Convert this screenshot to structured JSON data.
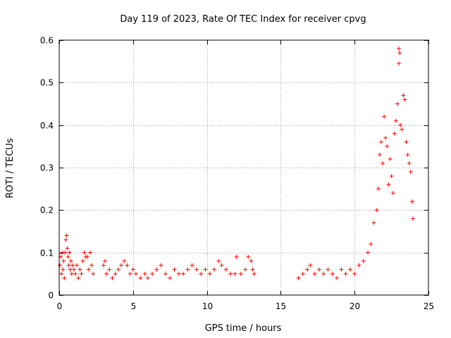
{
  "chart_data": {
    "type": "scatter",
    "title": "Day 119 of 2023, Rate Of TEC Index for receiver cpvg",
    "xlabel": "GPS time / hours",
    "ylabel": "ROTI / TECUs",
    "xlim": [
      0,
      25
    ],
    "ylim": [
      0,
      0.6
    ],
    "xticks": [
      0,
      5,
      10,
      15,
      20,
      25
    ],
    "xtick_labels": [
      "0",
      "5",
      "10",
      "15",
      "20",
      "25"
    ],
    "yticks": [
      0,
      0.1,
      0.2,
      0.3,
      0.4,
      0.5,
      0.6
    ],
    "ytick_labels": [
      "0",
      "0.1",
      "0.2",
      "0.3",
      "0.4",
      "0.5",
      "0.6"
    ],
    "grid": true,
    "marker": "+",
    "marker_color": "#ff0000",
    "series": [
      {
        "name": "ROTI",
        "points": [
          [
            0.05,
            0.07
          ],
          [
            0.1,
            0.09
          ],
          [
            0.15,
            0.05
          ],
          [
            0.2,
            0.1
          ],
          [
            0.25,
            0.06
          ],
          [
            0.3,
            0.08
          ],
          [
            0.35,
            0.04
          ],
          [
            0.4,
            0.1
          ],
          [
            0.45,
            0.13
          ],
          [
            0.5,
            0.14
          ],
          [
            0.55,
            0.11
          ],
          [
            0.6,
            0.09
          ],
          [
            0.65,
            0.07
          ],
          [
            0.7,
            0.1
          ],
          [
            0.75,
            0.06
          ],
          [
            0.8,
            0.08
          ],
          [
            0.85,
            0.05
          ],
          [
            0.9,
            0.07
          ],
          [
            1.0,
            0.06
          ],
          [
            1.1,
            0.05
          ],
          [
            1.2,
            0.07
          ],
          [
            1.3,
            0.04
          ],
          [
            1.4,
            0.06
          ],
          [
            1.5,
            0.05
          ],
          [
            1.6,
            0.08
          ],
          [
            1.7,
            0.1
          ],
          [
            1.8,
            0.09
          ],
          [
            1.9,
            0.09
          ],
          [
            2.0,
            0.06
          ],
          [
            2.1,
            0.1
          ],
          [
            2.2,
            0.07
          ],
          [
            2.3,
            0.05
          ],
          [
            3.0,
            0.07
          ],
          [
            3.1,
            0.08
          ],
          [
            3.2,
            0.05
          ],
          [
            3.4,
            0.06
          ],
          [
            3.6,
            0.04
          ],
          [
            3.8,
            0.05
          ],
          [
            4.0,
            0.06
          ],
          [
            4.2,
            0.07
          ],
          [
            4.4,
            0.08
          ],
          [
            4.6,
            0.07
          ],
          [
            4.8,
            0.05
          ],
          [
            5.0,
            0.06
          ],
          [
            5.2,
            0.05
          ],
          [
            5.5,
            0.04
          ],
          [
            5.8,
            0.05
          ],
          [
            6.0,
            0.04
          ],
          [
            6.3,
            0.05
          ],
          [
            6.6,
            0.06
          ],
          [
            6.9,
            0.07
          ],
          [
            7.2,
            0.05
          ],
          [
            7.5,
            0.04
          ],
          [
            7.8,
            0.06
          ],
          [
            8.1,
            0.05
          ],
          [
            8.4,
            0.05
          ],
          [
            8.7,
            0.06
          ],
          [
            9.0,
            0.07
          ],
          [
            9.3,
            0.06
          ],
          [
            9.6,
            0.05
          ],
          [
            9.9,
            0.06
          ],
          [
            10.2,
            0.05
          ],
          [
            10.5,
            0.06
          ],
          [
            10.8,
            0.08
          ],
          [
            11.0,
            0.07
          ],
          [
            11.3,
            0.06
          ],
          [
            11.6,
            0.05
          ],
          [
            11.9,
            0.05
          ],
          [
            12.0,
            0.09
          ],
          [
            12.3,
            0.05
          ],
          [
            12.6,
            0.06
          ],
          [
            12.8,
            0.09
          ],
          [
            13.0,
            0.08
          ],
          [
            13.1,
            0.06
          ],
          [
            13.2,
            0.05
          ],
          [
            16.2,
            0.04
          ],
          [
            16.5,
            0.05
          ],
          [
            16.8,
            0.06
          ],
          [
            17.0,
            0.07
          ],
          [
            17.3,
            0.05
          ],
          [
            17.6,
            0.06
          ],
          [
            17.9,
            0.05
          ],
          [
            18.2,
            0.06
          ],
          [
            18.5,
            0.05
          ],
          [
            18.8,
            0.04
          ],
          [
            19.1,
            0.06
          ],
          [
            19.4,
            0.05
          ],
          [
            19.7,
            0.06
          ],
          [
            20.0,
            0.05
          ],
          [
            20.3,
            0.07
          ],
          [
            20.6,
            0.08
          ],
          [
            20.9,
            0.1
          ],
          [
            21.1,
            0.12
          ],
          [
            21.3,
            0.17
          ],
          [
            21.5,
            0.2
          ],
          [
            21.6,
            0.25
          ],
          [
            21.7,
            0.33
          ],
          [
            21.8,
            0.36
          ],
          [
            21.9,
            0.31
          ],
          [
            22.0,
            0.42
          ],
          [
            22.1,
            0.37
          ],
          [
            22.2,
            0.35
          ],
          [
            22.3,
            0.26
          ],
          [
            22.4,
            0.32
          ],
          [
            22.5,
            0.28
          ],
          [
            22.6,
            0.24
          ],
          [
            22.7,
            0.38
          ],
          [
            22.8,
            0.41
          ],
          [
            22.9,
            0.45
          ],
          [
            23.0,
            0.58
          ],
          [
            23.05,
            0.57
          ],
          [
            23.0,
            0.545
          ],
          [
            23.1,
            0.4
          ],
          [
            23.2,
            0.39
          ],
          [
            23.3,
            0.47
          ],
          [
            23.4,
            0.46
          ],
          [
            23.5,
            0.36
          ],
          [
            23.6,
            0.33
          ],
          [
            23.7,
            0.31
          ],
          [
            23.8,
            0.29
          ],
          [
            23.9,
            0.22
          ],
          [
            23.95,
            0.18
          ]
        ]
      }
    ]
  }
}
